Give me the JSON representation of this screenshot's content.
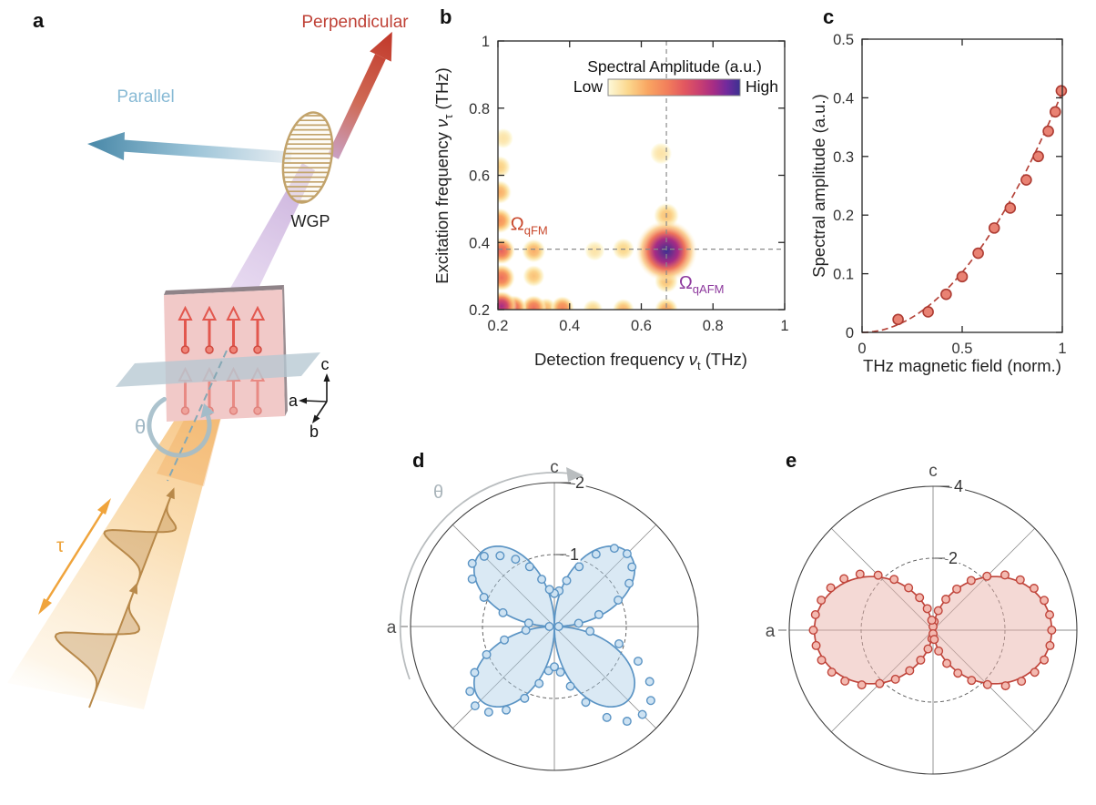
{
  "panel_a": {
    "label": "a",
    "perpendicular_label": "Perpendicular",
    "parallel_label": "Parallel",
    "wgp_label": "WGP",
    "theta_label": "θ",
    "tau_label": "τ",
    "crystal_axes": {
      "a": "a",
      "b": "b",
      "c": "c"
    },
    "colors": {
      "perpendicular": "#bf4136",
      "parallel": "#88bad5",
      "beam": "#f2a94e",
      "spins": "#e2574e",
      "wgp": "#c2a36b",
      "purple_beam": "#c7a9da"
    }
  },
  "panel_b": {
    "label": "b"
  },
  "panel_c": {
    "label": "c"
  },
  "panel_d": {
    "label": "d"
  },
  "panel_e": {
    "label": "e"
  },
  "chart_data": [
    {
      "panel": "b",
      "type": "heatmap",
      "title": "Spectral Amplitude (a.u.)",
      "colorbar": {
        "low_label": "Low",
        "high_label": "High"
      },
      "xlabel": {
        "pre": "Detection frequency ",
        "sym": "ν",
        "sub": "t",
        "post": " (THz)"
      },
      "ylabel": {
        "pre": "Excitation frequency ",
        "sym": "ν",
        "sub": "τ",
        "post": " (THz)"
      },
      "xlim": [
        0.2,
        1
      ],
      "ylim": [
        0.2,
        1
      ],
      "x_ticks": [
        0.2,
        0.4,
        0.6,
        0.8,
        1
      ],
      "y_ticks": [
        0.2,
        0.4,
        0.6,
        0.8,
        1
      ],
      "crosshair": {
        "x": 0.67,
        "y": 0.38
      },
      "colormap": [
        [
          0,
          "#fdf9da"
        ],
        [
          0.15,
          "#fbd88e"
        ],
        [
          0.3,
          "#f9a662"
        ],
        [
          0.45,
          "#f27e5b"
        ],
        [
          0.58,
          "#e25760"
        ],
        [
          0.7,
          "#c73e72"
        ],
        [
          0.8,
          "#a62c85"
        ],
        [
          0.9,
          "#712a9d"
        ],
        [
          1,
          "#3c3191"
        ]
      ],
      "peaks_format": "[x_THz, y_THz, intensity_0to1, radius_px]",
      "peaks": [
        [
          0.67,
          0.375,
          1.0,
          34
        ],
        [
          0.21,
          0.21,
          0.8,
          17
        ],
        [
          0.245,
          0.205,
          0.55,
          14
        ],
        [
          0.21,
          0.295,
          0.5,
          15
        ],
        [
          0.21,
          0.375,
          0.55,
          15
        ],
        [
          0.205,
          0.465,
          0.38,
          14
        ],
        [
          0.205,
          0.55,
          0.28,
          13
        ],
        [
          0.205,
          0.625,
          0.18,
          12
        ],
        [
          0.215,
          0.71,
          0.1,
          11
        ],
        [
          0.3,
          0.205,
          0.5,
          14
        ],
        [
          0.335,
          0.205,
          0.25,
          11
        ],
        [
          0.38,
          0.205,
          0.42,
          13
        ],
        [
          0.465,
          0.2,
          0.16,
          11
        ],
        [
          0.55,
          0.2,
          0.26,
          12
        ],
        [
          0.67,
          0.2,
          0.3,
          13
        ],
        [
          0.3,
          0.3,
          0.22,
          12
        ],
        [
          0.3,
          0.375,
          0.28,
          13
        ],
        [
          0.47,
          0.375,
          0.1,
          11
        ],
        [
          0.55,
          0.38,
          0.16,
          12
        ],
        [
          0.67,
          0.285,
          0.22,
          13
        ],
        [
          0.67,
          0.48,
          0.22,
          14
        ],
        [
          0.655,
          0.665,
          0.1,
          12
        ]
      ],
      "annotations": [
        {
          "main": "Ω",
          "sub": "qFM",
          "x": 0.235,
          "y": 0.437,
          "color": "#c8472b"
        },
        {
          "main": "Ω",
          "sub": "qAFM",
          "x": 0.705,
          "y": 0.262,
          "color": "#8e3a9e"
        }
      ]
    },
    {
      "panel": "c",
      "type": "scatter",
      "xlabel": "THz magnetic field (norm.)",
      "ylabel": "Spectral amplitude (a.u.)",
      "xlim": [
        0,
        1
      ],
      "ylim": [
        0,
        0.5
      ],
      "x_ticks": [
        0,
        0.5,
        1
      ],
      "y_ticks": [
        0,
        0.1,
        0.2,
        0.3,
        0.4,
        0.5
      ],
      "points": [
        [
          0.18,
          0.022
        ],
        [
          0.33,
          0.035
        ],
        [
          0.42,
          0.065
        ],
        [
          0.5,
          0.095
        ],
        [
          0.58,
          0.135
        ],
        [
          0.66,
          0.178
        ],
        [
          0.74,
          0.212
        ],
        [
          0.82,
          0.26
        ],
        [
          0.88,
          0.3
        ],
        [
          0.93,
          0.343
        ],
        [
          0.965,
          0.376
        ],
        [
          0.995,
          0.412
        ]
      ],
      "fit": {
        "type": "quadratic",
        "coefficient": 0.41
      },
      "marker_color": "#e98273",
      "marker_edge": "#ad3c33",
      "fit_color": "#b5443a"
    },
    {
      "panel": "d",
      "type": "polar",
      "rmax": 2,
      "ring_ticks": [
        1,
        2
      ],
      "axis_top": "c",
      "axis_left": "a",
      "theta_label": "θ",
      "angle_reference": "degrees CCW; c-axis at 90 deg, a-axis at 180 deg",
      "fit": {
        "type": "abs_sin_2theta",
        "amplitude": 1.45
      },
      "points": [
        [
          0,
          0.06
        ],
        [
          7.5,
          0.34
        ],
        [
          15,
          0.64
        ],
        [
          22.5,
          0.96
        ],
        [
          30,
          1.2
        ],
        [
          37.5,
          1.36
        ],
        [
          45,
          1.43
        ],
        [
          52.5,
          1.37
        ],
        [
          60,
          1.16
        ],
        [
          67.5,
          0.9
        ],
        [
          75,
          0.66
        ],
        [
          82.5,
          0.5
        ],
        [
          90,
          0.46
        ],
        [
          97.5,
          0.52
        ],
        [
          105,
          0.68
        ],
        [
          112.5,
          0.9
        ],
        [
          120,
          1.08
        ],
        [
          127.5,
          1.24
        ],
        [
          135,
          1.38
        ],
        [
          142.5,
          1.44
        ],
        [
          150,
          1.32
        ],
        [
          157.5,
          1.06
        ],
        [
          165,
          0.74
        ],
        [
          172.5,
          0.36
        ],
        [
          180,
          0.07
        ],
        [
          187.5,
          0.4
        ],
        [
          195,
          0.72
        ],
        [
          202.5,
          1.02
        ],
        [
          210,
          1.28
        ],
        [
          217.5,
          1.48
        ],
        [
          225,
          1.56
        ],
        [
          232.5,
          1.5
        ],
        [
          240,
          1.34
        ],
        [
          247.5,
          1.08
        ],
        [
          255,
          0.82
        ],
        [
          262.5,
          0.62
        ],
        [
          270,
          0.56
        ],
        [
          277.5,
          0.64
        ],
        [
          285,
          0.86
        ],
        [
          292.5,
          1.14
        ],
        [
          300,
          1.46
        ],
        [
          307.5,
          1.66
        ],
        [
          315,
          1.73
        ],
        [
          322.5,
          1.69
        ],
        [
          330,
          1.53
        ],
        [
          337.5,
          1.26
        ],
        [
          345,
          0.93
        ],
        [
          352.5,
          0.5
        ]
      ],
      "line_color": "#5b94c4",
      "fill_color": "rgba(173,207,231,0.45)",
      "marker_fill": "#cde2f2",
      "marker_edge": "#5b94c4"
    },
    {
      "panel": "e",
      "type": "polar",
      "rmax": 4,
      "ring_ticks": [
        2,
        4
      ],
      "axis_top": "c",
      "axis_left": "a",
      "angle_reference": "degrees CCW; c-axis at 90 deg, a-axis at 180 deg",
      "fit": {
        "type": "abs_cos_pow",
        "amplitude": 3.3,
        "exponent": 1.33
      },
      "points": [
        [
          0,
          3.3
        ],
        [
          7.5,
          3.27
        ],
        [
          15,
          3.2
        ],
        [
          22.5,
          3.04
        ],
        [
          30,
          2.8
        ],
        [
          37.5,
          2.52
        ],
        [
          45,
          2.12
        ],
        [
          52.5,
          1.74
        ],
        [
          60,
          1.32
        ],
        [
          67.5,
          0.93
        ],
        [
          75,
          0.56
        ],
        [
          82.5,
          0.24
        ],
        [
          90,
          0.1
        ],
        [
          97.5,
          0.28
        ],
        [
          105,
          0.62
        ],
        [
          112.5,
          0.98
        ],
        [
          120,
          1.36
        ],
        [
          127.5,
          1.78
        ],
        [
          135,
          2.16
        ],
        [
          142.5,
          2.56
        ],
        [
          150,
          2.86
        ],
        [
          157.5,
          3.08
        ],
        [
          165,
          3.22
        ],
        [
          172.5,
          3.3
        ],
        [
          180,
          3.33
        ],
        [
          187.5,
          3.28
        ],
        [
          195,
          3.21
        ],
        [
          202.5,
          3.05
        ],
        [
          210,
          2.83
        ],
        [
          217.5,
          2.5
        ],
        [
          225,
          2.1
        ],
        [
          232.5,
          1.72
        ],
        [
          240,
          1.3
        ],
        [
          247.5,
          0.9
        ],
        [
          255,
          0.54
        ],
        [
          262.5,
          0.24
        ],
        [
          270,
          0.1
        ],
        [
          277.5,
          0.26
        ],
        [
          285,
          0.6
        ],
        [
          292.5,
          1.0
        ],
        [
          300,
          1.38
        ],
        [
          307.5,
          1.76
        ],
        [
          315,
          2.14
        ],
        [
          322.5,
          2.54
        ],
        [
          330,
          2.84
        ],
        [
          337.5,
          3.06
        ],
        [
          345,
          3.2
        ],
        [
          352.5,
          3.28
        ]
      ],
      "line_color": "#c0453b",
      "fill_color": "rgba(233,180,172,0.5)",
      "marker_fill": "#f3b9b0",
      "marker_edge": "#c0453b"
    }
  ]
}
